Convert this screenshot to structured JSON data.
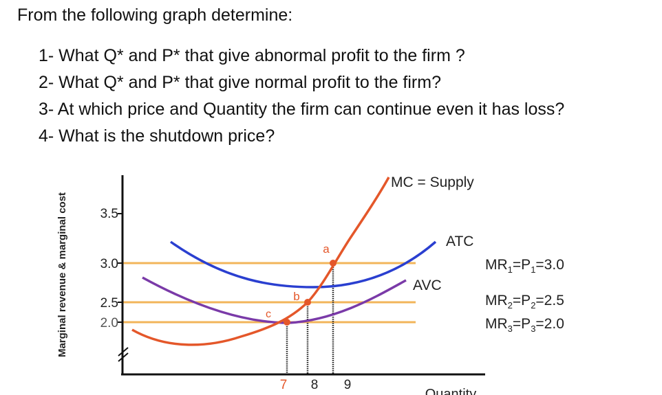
{
  "prompt": "From the following graph determine:",
  "questions": [
    "1- What Q* and P* that give abnormal profit to the firm ?",
    "2- What Q* and P* that give normal profit to the firm?",
    "3- At which price and Quantity the firm can continue even it has loss?",
    "4- What is the shutdown price?"
  ],
  "graph": {
    "y_axis_label": "Marginal revenue & marginal cost",
    "x_axis_label": "Quantity",
    "y_ticks": [
      "3.5",
      "3.0",
      "2.5",
      "2.0"
    ],
    "x_ticks": [
      "7",
      "8",
      "9"
    ],
    "curves": {
      "mc": "MC = Supply",
      "atc": "ATC",
      "avc": "AVC"
    },
    "price_lines": {
      "mr1": "MR1=P1=3.0",
      "mr2": "MR2=P2=2.5",
      "mr3": "MR3=P3=2.0"
    },
    "points": [
      "a",
      "b",
      "c"
    ],
    "colors": {
      "mc": "#e4572a",
      "atc": "#2a3fd0",
      "avc": "#7a3aa8",
      "price_lines": "#f2b55a",
      "axis": "#111111"
    }
  }
}
